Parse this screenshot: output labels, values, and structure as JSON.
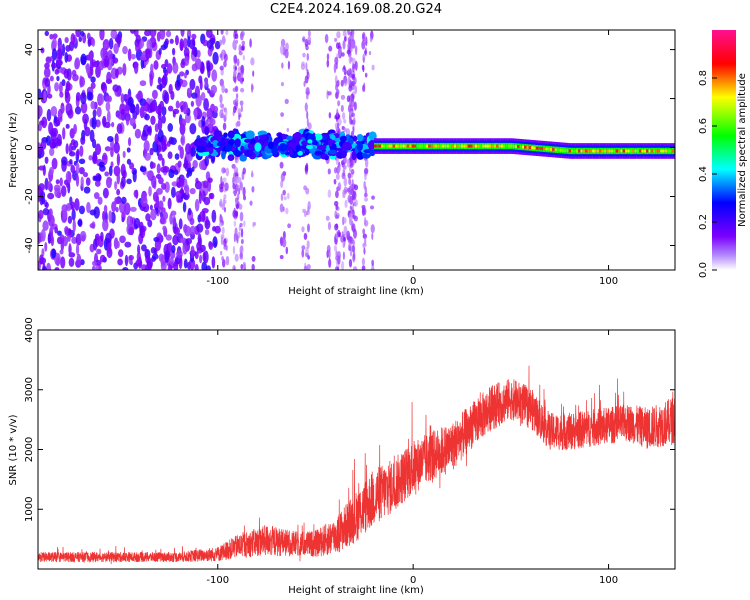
{
  "title": "C2E4.2024.169.08.20.G24",
  "chart_data": [
    {
      "type": "heatmap",
      "xlabel": "Height of straight line (km)",
      "ylabel": "Frequency (Hz)",
      "xlim": [
        -192,
        134
      ],
      "ylim": [
        -50,
        48
      ],
      "xticks": [
        -100,
        0,
        100
      ],
      "yticks": [
        -40,
        -20,
        0,
        20,
        40
      ],
      "colorbar": {
        "label": "Normalized spectral amplitude",
        "range": [
          0,
          1
        ],
        "ticks": [
          "0.0",
          "0.2",
          "0.4",
          "0.6",
          "0.8"
        ],
        "tick_values": [
          0,
          0.2,
          0.4,
          0.6,
          0.8
        ],
        "colors": [
          "#ffffff",
          "#7b00ff",
          "#0000ff",
          "#00ffff",
          "#00ff00",
          "#ffff00",
          "#ff0000",
          "#ff0090"
        ]
      },
      "regions": [
        {
          "x": [
            -192,
            -100
          ],
          "y": [
            -50,
            48
          ],
          "pattern": "dense scattered blobs",
          "amplitude": [
            0.1,
            0.25
          ]
        },
        {
          "x": [
            -100,
            -20
          ],
          "y": [
            -50,
            48
          ],
          "pattern": "sparse vertical streaks",
          "amplitude": [
            0.05,
            0.15
          ]
        },
        {
          "x": [
            -110,
            -20
          ],
          "y": [
            -4,
            6
          ],
          "pattern": "blotchy band",
          "amplitude": [
            0.2,
            0.45
          ]
        },
        {
          "x": [
            -20,
            134
          ],
          "y": [
            -3,
            2
          ],
          "pattern": "narrow line near 0 Hz",
          "amplitude": [
            0.3,
            0.85
          ]
        }
      ]
    },
    {
      "type": "line",
      "color": "#ee3333",
      "xlabel": "Height of straight line (km)",
      "ylabel": "SNR (10 * v/v)",
      "xlim": [
        -192,
        134
      ],
      "ylim": [
        0,
        4000
      ],
      "xticks": [
        -100,
        0,
        100
      ],
      "yticks": [
        1000,
        2000,
        3000,
        4000
      ],
      "envelope": {
        "x": [
          -192,
          -160,
          -120,
          -100,
          -90,
          -75,
          -60,
          -50,
          -40,
          -30,
          -20,
          -10,
          0,
          10,
          20,
          30,
          40,
          50,
          60,
          70,
          80,
          90,
          100,
          110,
          120,
          130,
          134
        ],
        "mean": [
          200,
          200,
          200,
          250,
          380,
          480,
          420,
          420,
          550,
          850,
          1200,
          1400,
          1700,
          1900,
          2050,
          2400,
          2700,
          2850,
          2700,
          2300,
          2300,
          2350,
          2400,
          2450,
          2350,
          2450,
          2500
        ],
        "spread": [
          120,
          120,
          120,
          180,
          280,
          380,
          300,
          320,
          450,
          600,
          700,
          650,
          650,
          600,
          600,
          550,
          550,
          500,
          500,
          450,
          450,
          450,
          450,
          450,
          500,
          550,
          600
        ]
      }
    }
  ]
}
